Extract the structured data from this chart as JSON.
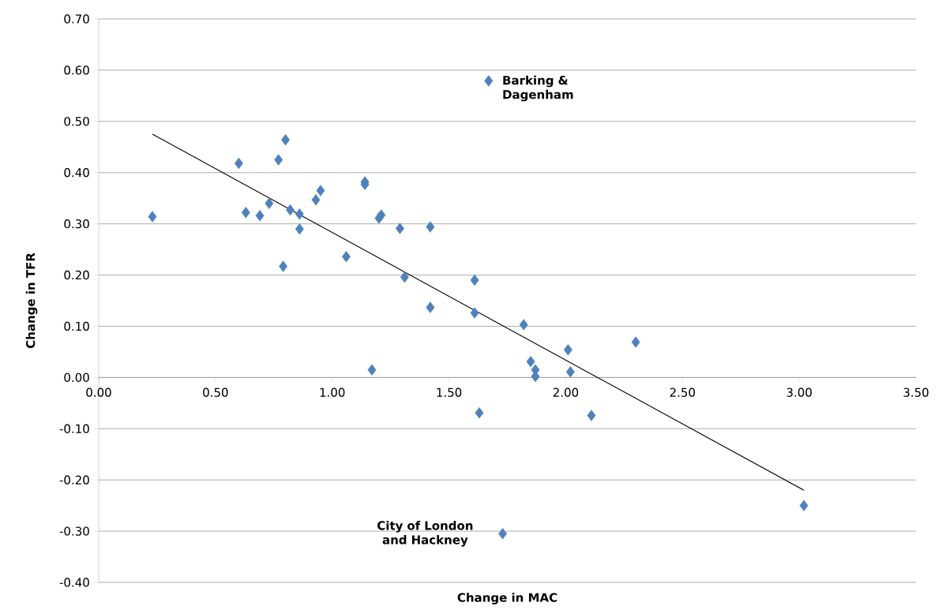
{
  "chart_data": {
    "type": "scatter",
    "xlabel": "Change in MAC",
    "ylabel": "Change in TFR",
    "xlim": [
      0,
      3.5
    ],
    "xticks": [
      {
        "value": 0,
        "label": "0.00"
      },
      {
        "value": 0.5,
        "label": "0.50"
      },
      {
        "value": 1,
        "label": "1.00"
      },
      {
        "value": 1.5,
        "label": "1.50"
      },
      {
        "value": 2,
        "label": "2.00"
      },
      {
        "value": 2.5,
        "label": "2.50"
      },
      {
        "value": 3,
        "label": "3.00"
      },
      {
        "value": 3.5,
        "label": "3.50"
      }
    ],
    "ylim": [
      -0.4,
      0.7
    ],
    "yticks": [
      {
        "value": -0.4,
        "label": "-0.40"
      },
      {
        "value": -0.3,
        "label": "-0.30"
      },
      {
        "value": -0.2,
        "label": "-0.20"
      },
      {
        "value": -0.1,
        "label": "-0.10"
      },
      {
        "value": 0,
        "label": "0.00"
      },
      {
        "value": 0.1,
        "label": "0.10"
      },
      {
        "value": 0.2,
        "label": "0.20"
      },
      {
        "value": 0.3,
        "label": "0.30"
      },
      {
        "value": 0.4,
        "label": "0.40"
      },
      {
        "value": 0.5,
        "label": "0.50"
      },
      {
        "value": 0.6,
        "label": "0.60"
      },
      {
        "value": 0.7,
        "label": "0.70"
      }
    ],
    "grid": "y",
    "marker": "diamond",
    "series": [
      {
        "color": "#4f81bd",
        "x": [
          0.23,
          0.6,
          0.63,
          0.69,
          0.73,
          0.77,
          0.8,
          0.79,
          0.82,
          0.86,
          0.86,
          0.93,
          0.95,
          1.06,
          1.14,
          1.14,
          1.17,
          1.2,
          1.21,
          1.29,
          1.31,
          1.42,
          1.42,
          1.61,
          1.61,
          1.63,
          1.67,
          1.73,
          1.82,
          1.85,
          1.87,
          1.87,
          2.01,
          2.02,
          2.11,
          2.3,
          3.02
        ],
        "values": [
          0.314,
          0.418,
          0.322,
          0.316,
          0.34,
          0.425,
          0.464,
          0.217,
          0.327,
          0.319,
          0.29,
          0.347,
          0.365,
          0.236,
          0.377,
          0.382,
          0.015,
          0.311,
          0.317,
          0.291,
          0.196,
          0.294,
          0.137,
          0.126,
          0.19,
          -0.069,
          0.579,
          -0.305,
          0.103,
          0.031,
          0.015,
          0.002,
          0.054,
          0.011,
          -0.074,
          0.069,
          -0.25
        ]
      },
      {
        "type": "line",
        "color": "#000000",
        "marker": "none",
        "x": [
          0.23,
          3.02
        ],
        "values": [
          0.475,
          -0.22
        ]
      }
    ],
    "annotations": [
      {
        "text": "Barking & Dagenham",
        "x": 1.67,
        "y": 0.579
      },
      {
        "text": "City of London and Hackney",
        "x": 1.73,
        "y": -0.305
      }
    ]
  }
}
